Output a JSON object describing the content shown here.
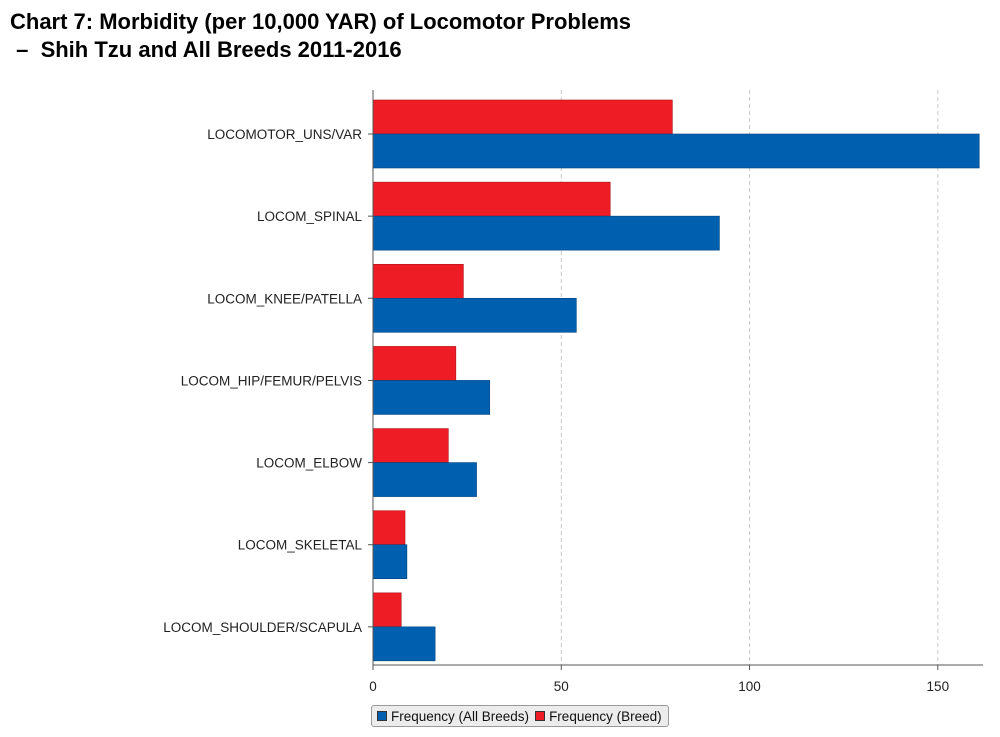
{
  "chart_data": {
    "type": "bar",
    "orientation": "horizontal",
    "title": {
      "line1": "Chart 7: Morbidity (per 10,000 YAR) of Locomotor Problems",
      "line2": " –  Shih Tzu and All Breeds 2011-2016"
    },
    "categories": [
      "LOCOMOTOR_UNS/VAR",
      "LOCOM_SPINAL",
      "LOCOM_KNEE/PATELLA",
      "LOCOM_HIP/FEMUR/PELVIS",
      "LOCOM_ELBOW",
      "LOCOM_SKELETAL",
      "LOCOM_SHOULDER/SCAPULA"
    ],
    "series": [
      {
        "name": "Frequency (Breed)",
        "color": "#ee1c25",
        "values": [
          79.5,
          63,
          24,
          22,
          20,
          8.5,
          7.5
        ]
      },
      {
        "name": "Frequency (All Breeds)",
        "color": "#0060b0",
        "values": [
          161,
          92,
          54,
          31,
          27.5,
          9,
          16.5
        ]
      }
    ],
    "xlim": [
      0,
      162
    ],
    "xticks": [
      0,
      50,
      100,
      150
    ],
    "tick_labels": [
      "0",
      "50",
      "100",
      "150"
    ],
    "grid": "vertical dashed",
    "legend": {
      "position": "bottom",
      "entries": [
        {
          "label": "Frequency (All Breeds)",
          "color": "#0060b0"
        },
        {
          "label": "Frequency (Breed)",
          "color": "#ee1c25"
        }
      ]
    }
  }
}
